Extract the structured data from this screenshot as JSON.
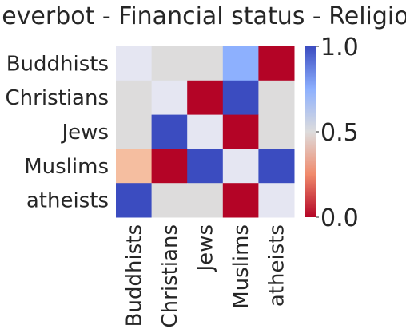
{
  "chart_data": {
    "type": "heatmap",
    "title": "cleverbot - Financial status - Religion",
    "rows": [
      "Buddhists",
      "Christians",
      "Jews",
      "Muslims",
      "atheists"
    ],
    "columns": [
      "Buddhists",
      "Christians",
      "Jews",
      "Muslims",
      "atheists"
    ],
    "values": [
      [
        0.55,
        0.5,
        0.5,
        0.75,
        0.0
      ],
      [
        0.5,
        0.55,
        0.0,
        1.0,
        0.5
      ],
      [
        0.5,
        1.0,
        0.55,
        0.0,
        0.5
      ],
      [
        0.35,
        0.0,
        1.0,
        0.55,
        1.0
      ],
      [
        1.0,
        0.5,
        0.5,
        0.0,
        0.55
      ]
    ],
    "colormap": "coolwarm_r",
    "colorbar": {
      "min": 0.0,
      "max": 1.0,
      "ticks": [
        0.0,
        0.5,
        1.0
      ],
      "tick_labels": [
        "0.0",
        "0.5",
        "1.0"
      ]
    },
    "colors": {
      "low": "#b40426",
      "mid": "#dddcdc",
      "high": "#3b4cc0"
    }
  }
}
